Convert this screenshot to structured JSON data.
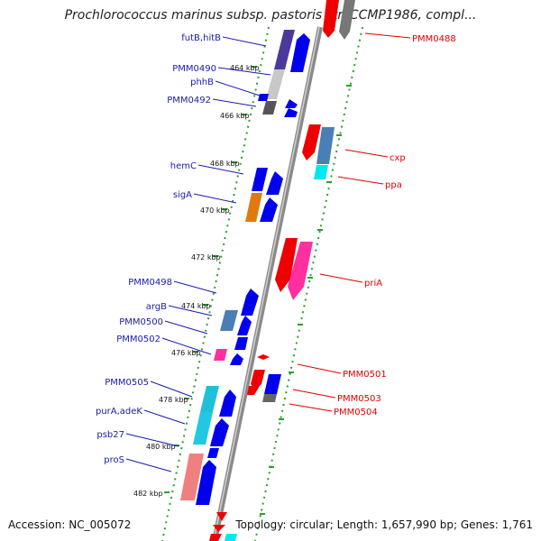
{
  "title": "Prochlorococcus marinus subsp. pastoris str. CCMP1986, compl...",
  "footer": {
    "accession": "Accession: NC_005072",
    "summary": "Topology: circular; Length: 1,657,990 bp; Genes: 1,761"
  },
  "kbp_ticks": [
    "464 kbp",
    "466 kbp",
    "468 kbp",
    "470 kbp",
    "472 kbp",
    "474 kbp",
    "476 kbp",
    "478 kbp",
    "480 kbp",
    "482 kbp"
  ],
  "genes_left": [
    "futB,hitB",
    "PMM0490",
    "phhB",
    "PMM0492",
    "hemC",
    "sigA",
    "PMM0498",
    "argB",
    "PMM0500",
    "PMM0502",
    "PMM0505",
    "purA,adeK",
    "psb27",
    "proS"
  ],
  "genes_right": [
    "PMM0488",
    "cxp",
    "ppa",
    "priA",
    "PMM0501",
    "PMM0503",
    "PMM0504"
  ],
  "colors": {
    "forward_default": "#0000ee",
    "reverse_default": "#ee0000",
    "gene_label_forward": "#1a1ab0",
    "gene_label_reverse": "#e00000",
    "backbone": "#8a8a8a",
    "dotted_track": "#2aa02a"
  }
}
